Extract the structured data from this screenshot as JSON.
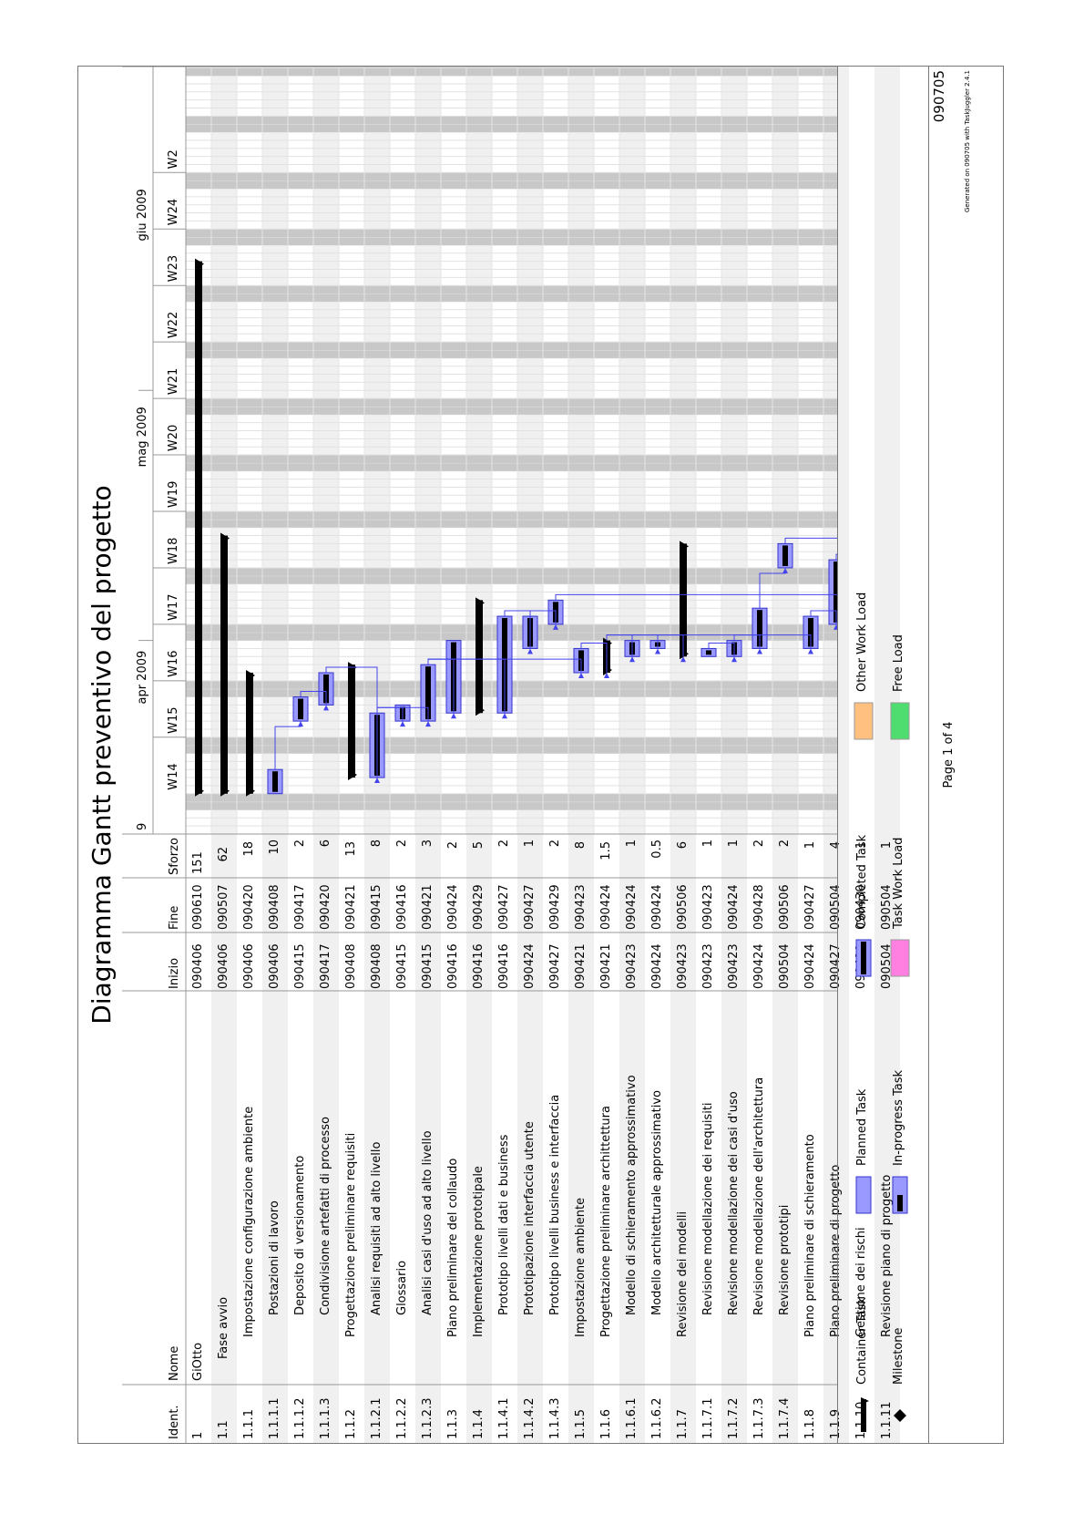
{
  "title": "Diagramma Gantt preventivo del progetto",
  "columns": {
    "id": "Ident.",
    "name": "Nome",
    "start": "Inizio",
    "end": "Fine",
    "effort": "Sforzo"
  },
  "timeline": {
    "months": [
      {
        "label": "9",
        "week_index": 0
      },
      {
        "label": "apr 2009",
        "week_index": 2.3
      },
      {
        "label": "mag 2009",
        "week_index": 6.5
      },
      {
        "label": "giu 2009",
        "week_index": 10.5
      }
    ],
    "weeks": [
      "W14",
      "W15",
      "W16",
      "W17",
      "W18",
      "W19",
      "W20",
      "W21",
      "W22",
      "W23",
      "W24",
      "W2"
    ]
  },
  "rows": [
    {
      "id": "1",
      "name": "GiOtto",
      "indent": 0,
      "start": "090406",
      "end": "090610",
      "effort": "151",
      "type": "container"
    },
    {
      "id": "1.1",
      "name": "Fase avvio",
      "indent": 1,
      "start": "090406",
      "end": "090507",
      "effort": "62",
      "type": "container"
    },
    {
      "id": "1.1.1",
      "name": "Impostazione configurazione ambiente",
      "indent": 2,
      "start": "090406",
      "end": "090420",
      "effort": "18",
      "type": "container"
    },
    {
      "id": "1.1.1.1",
      "name": "Postazioni di lavoro",
      "indent": 3,
      "start": "090406",
      "end": "090408",
      "effort": "10",
      "type": "task"
    },
    {
      "id": "1.1.1.2",
      "name": "Deposito di versionamento",
      "indent": 3,
      "start": "090415",
      "end": "090417",
      "effort": "2",
      "type": "task"
    },
    {
      "id": "1.1.1.3",
      "name": "Condivisione artefatti di processo",
      "indent": 3,
      "start": "090417",
      "end": "090420",
      "effort": "6",
      "type": "task"
    },
    {
      "id": "1.1.2",
      "name": "Progettazione preliminare requisiti",
      "indent": 2,
      "start": "090408",
      "end": "090421",
      "effort": "13",
      "type": "container"
    },
    {
      "id": "1.1.2.1",
      "name": "Analisi requisiti ad alto livello",
      "indent": 3,
      "start": "090408",
      "end": "090415",
      "effort": "8",
      "type": "task"
    },
    {
      "id": "1.1.2.2",
      "name": "Glossario",
      "indent": 3,
      "start": "090415",
      "end": "090416",
      "effort": "2",
      "type": "task"
    },
    {
      "id": "1.1.2.3",
      "name": "Analisi casi d'uso ad alto livello",
      "indent": 3,
      "start": "090415",
      "end": "090421",
      "effort": "3",
      "type": "task"
    },
    {
      "id": "1.1.3",
      "name": "Piano preliminare del collaudo",
      "indent": 2,
      "start": "090416",
      "end": "090424",
      "effort": "2",
      "type": "task"
    },
    {
      "id": "1.1.4",
      "name": "Implementazione prototipale",
      "indent": 2,
      "start": "090416",
      "end": "090429",
      "effort": "5",
      "type": "container"
    },
    {
      "id": "1.1.4.1",
      "name": "Prototipo livelli dati e business",
      "indent": 3,
      "start": "090416",
      "end": "090427",
      "effort": "2",
      "type": "task"
    },
    {
      "id": "1.1.4.2",
      "name": "Prototipazione interfaccia utente",
      "indent": 3,
      "start": "090424",
      "end": "090427",
      "effort": "1",
      "type": "task"
    },
    {
      "id": "1.1.4.3",
      "name": "Prototipo livelli business e interfaccia",
      "indent": 3,
      "start": "090427",
      "end": "090429",
      "effort": "2",
      "type": "task"
    },
    {
      "id": "1.1.5",
      "name": "Impostazione ambiente",
      "indent": 2,
      "start": "090421",
      "end": "090423",
      "effort": "8",
      "type": "task"
    },
    {
      "id": "1.1.6",
      "name": "Progettazione preliminare archittettura",
      "indent": 2,
      "start": "090421",
      "end": "090424",
      "effort": "1.5",
      "type": "container"
    },
    {
      "id": "1.1.6.1",
      "name": "Modello di schieramento approssimativo",
      "indent": 3,
      "start": "090423",
      "end": "090424",
      "effort": "1",
      "type": "task"
    },
    {
      "id": "1.1.6.2",
      "name": "Modello architetturale approssimativo",
      "indent": 3,
      "start": "090424",
      "end": "090424",
      "effort": "0.5",
      "type": "task"
    },
    {
      "id": "1.1.7",
      "name": "Revisione dei modelli",
      "indent": 2,
      "start": "090423",
      "end": "090506",
      "effort": "6",
      "type": "container"
    },
    {
      "id": "1.1.7.1",
      "name": "Revisione modellazione dei requisiti",
      "indent": 3,
      "start": "090423",
      "end": "090423",
      "effort": "1",
      "type": "task"
    },
    {
      "id": "1.1.7.2",
      "name": "Revisione modellazione dei casi d'uso",
      "indent": 3,
      "start": "090423",
      "end": "090424",
      "effort": "1",
      "type": "task"
    },
    {
      "id": "1.1.7.3",
      "name": "Revisione modellazione dell'architettura",
      "indent": 3,
      "start": "090424",
      "end": "090428",
      "effort": "2",
      "type": "task"
    },
    {
      "id": "1.1.7.4",
      "name": "Revisione prototipi",
      "indent": 3,
      "start": "090504",
      "end": "090506",
      "effort": "2",
      "type": "task"
    },
    {
      "id": "1.1.8",
      "name": "Piano preliminare di schieramento",
      "indent": 2,
      "start": "090424",
      "end": "090427",
      "effort": "1",
      "type": "task"
    },
    {
      "id": "1.1.9",
      "name": "Piano preliminare di progetto",
      "indent": 2,
      "start": "090427",
      "end": "090504",
      "effort": "4",
      "type": "task"
    },
    {
      "id": "1.1.10",
      "name": "Gestione dei rischi",
      "indent": 2,
      "start": "090429",
      "end": "090430",
      "effort": "1",
      "type": "task"
    },
    {
      "id": "1.1.11",
      "name": "Revisione piano di progetto",
      "indent": 2,
      "start": "090504",
      "end": "090504",
      "effort": "1",
      "type": "task"
    }
  ],
  "legend": [
    {
      "label": "Container Task",
      "kind": "container"
    },
    {
      "label": "Planned Task",
      "kind": "planned"
    },
    {
      "label": "Completed Task",
      "kind": "completed"
    },
    {
      "label": "Other Work Load",
      "kind": "other",
      "color": "#ffc080"
    },
    {
      "label": "Milestone",
      "kind": "milestone"
    },
    {
      "label": "In-progress Task",
      "kind": "inprogress"
    },
    {
      "label": "Task Work Load",
      "kind": "work",
      "color": "#ff80e0"
    },
    {
      "label": "Free Load",
      "kind": "free",
      "color": "#50dd70"
    }
  ],
  "footer": {
    "page": "Page 1 of 4",
    "code": "090705",
    "generated": "Generated on 090705 with TaskJuggler 2.4.1"
  },
  "colors": {
    "bar_fill": "#9999ff",
    "bar_stroke": "#3333cc",
    "dependency": "#4444ee",
    "weekend": "#c8c8c8",
    "row_alt": "#f0f0f0"
  }
}
